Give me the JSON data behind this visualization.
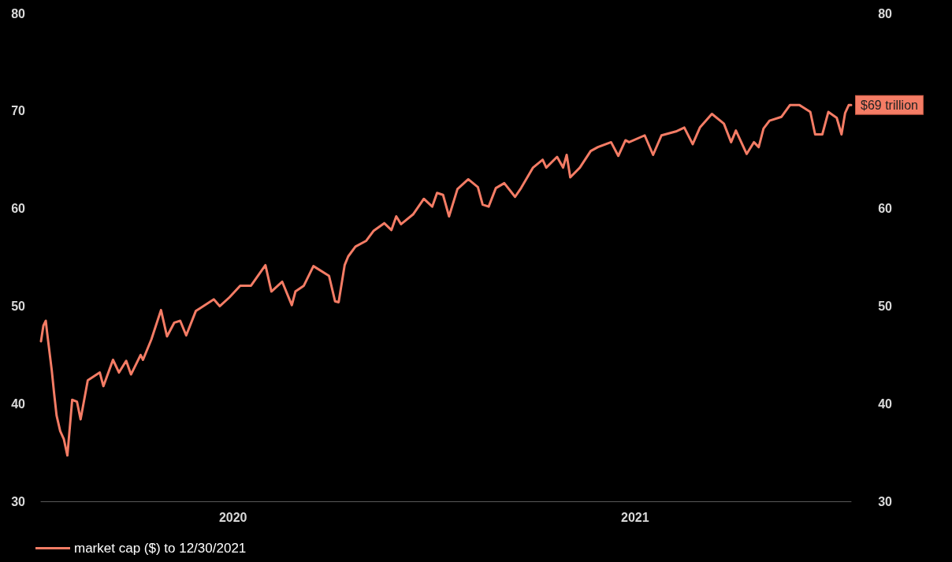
{
  "chart_data": {
    "type": "line",
    "x": [
      "2020-02-24",
      "2020-02-26",
      "2020-02-28",
      "2020-02-29",
      "2020-03-04",
      "2020-03-06",
      "2020-03-08",
      "2020-03-11",
      "2020-03-14",
      "2020-03-17",
      "2020-03-21",
      "2020-03-25",
      "2020-03-28",
      "2020-04-03",
      "2020-04-13",
      "2020-04-16",
      "2020-04-24",
      "2020-04-29",
      "2020-05-05",
      "2020-05-09",
      "2020-05-17",
      "2020-05-19",
      "2020-05-26",
      "2020-06-03",
      "2020-06-08",
      "2020-06-14",
      "2020-06-19",
      "2020-06-24",
      "2020-07-02",
      "2020-07-17",
      "2020-07-22",
      "2020-07-30",
      "2020-08-08",
      "2020-08-17",
      "2020-08-29",
      "2020-09-03",
      "2020-09-12",
      "2020-09-20",
      "2020-09-23",
      "2020-09-30",
      "2020-10-08",
      "2020-10-21",
      "2020-10-26",
      "2020-10-29",
      "2020-11-03",
      "2020-11-06",
      "2020-11-12",
      "2020-11-21",
      "2020-11-27",
      "2020-12-06",
      "2020-12-12",
      "2020-12-16",
      "2020-12-20",
      "2020-12-30",
      "2021-01-08",
      "2021-01-15",
      "2021-01-19",
      "2021-01-24",
      "2021-01-29",
      "2021-02-05",
      "2021-02-14",
      "2021-02-22",
      "2021-02-26",
      "2021-03-03",
      "2021-03-09",
      "2021-03-16",
      "2021-03-25",
      "2021-03-30",
      "2021-04-09",
      "2021-04-17",
      "2021-04-20",
      "2021-04-29",
      "2021-05-04",
      "2021-05-07",
      "2021-05-10",
      "2021-05-18",
      "2021-05-27",
      "2021-06-02",
      "2021-06-13",
      "2021-06-19",
      "2021-06-25",
      "2021-06-28",
      "2021-07-11",
      "2021-07-18",
      "2021-07-25",
      "2021-08-06",
      "2021-08-13",
      "2021-08-20",
      "2021-08-26",
      "2021-09-05",
      "2021-09-15",
      "2021-09-21",
      "2021-09-25",
      "2021-10-04",
      "2021-10-10",
      "2021-10-14",
      "2021-10-18",
      "2021-10-23",
      "2021-11-02",
      "2021-11-09",
      "2021-11-17",
      "2021-11-26",
      "2021-11-30",
      "2021-12-06",
      "2021-12-11",
      "2021-12-18",
      "2021-12-22",
      "2021-12-25",
      "2021-12-28",
      "2021-12-30"
    ],
    "series": [
      {
        "name": "market cap ($) to 12/30/2021",
        "color": "#f47c65",
        "values": [
          46.4,
          48.0,
          48.5,
          47.4,
          43.4,
          41.0,
          38.8,
          37.2,
          36.4,
          34.7,
          40.4,
          40.2,
          38.4,
          42.4,
          43.2,
          41.8,
          44.5,
          43.2,
          44.4,
          43.0,
          45.0,
          44.5,
          46.6,
          49.6,
          46.9,
          48.3,
          48.5,
          47.0,
          49.5,
          50.7,
          50.0,
          50.9,
          52.1,
          52.1,
          54.2,
          51.5,
          52.5,
          50.1,
          51.5,
          52.1,
          54.1,
          53.1,
          50.5,
          50.4,
          54.2,
          55.1,
          56.1,
          56.7,
          57.7,
          58.5,
          57.8,
          59.2,
          58.4,
          59.4,
          61.0,
          60.2,
          61.6,
          61.4,
          59.2,
          62.0,
          63.0,
          62.2,
          60.4,
          60.2,
          62.1,
          62.6,
          61.2,
          62.1,
          64.2,
          65.0,
          64.2,
          65.3,
          64.2,
          65.5,
          63.2,
          64.2,
          65.9,
          66.3,
          66.8,
          65.4,
          67.0,
          66.8,
          67.5,
          65.5,
          67.5,
          67.9,
          68.3,
          66.6,
          68.3,
          69.7,
          68.7,
          66.8,
          68.0,
          65.6,
          66.8,
          66.3,
          68.2,
          69.0,
          69.4,
          70.6,
          70.6,
          69.9,
          67.6,
          67.6,
          69.9,
          69.3,
          67.6,
          69.8,
          70.6,
          70.6
        ]
      }
    ],
    "xlim": [
      "2020-02-24",
      "2021-12-30"
    ],
    "xticks": [
      {
        "value": "2020-08-02",
        "label": "2020"
      },
      {
        "value": "2021-07-03",
        "label": "2021"
      }
    ],
    "ylim": [
      30,
      80
    ],
    "yticks": [
      30,
      40,
      50,
      60,
      70,
      80
    ],
    "y2lim": [
      30,
      80
    ],
    "y2ticks": [
      30,
      40,
      50,
      60,
      80
    ],
    "annotations": [
      {
        "text": "$69 trillion",
        "x": "2021-12-30",
        "y": 70.6
      }
    ],
    "grid": false,
    "legend": "bottom left",
    "marker": "none",
    "line_style": "solid"
  }
}
